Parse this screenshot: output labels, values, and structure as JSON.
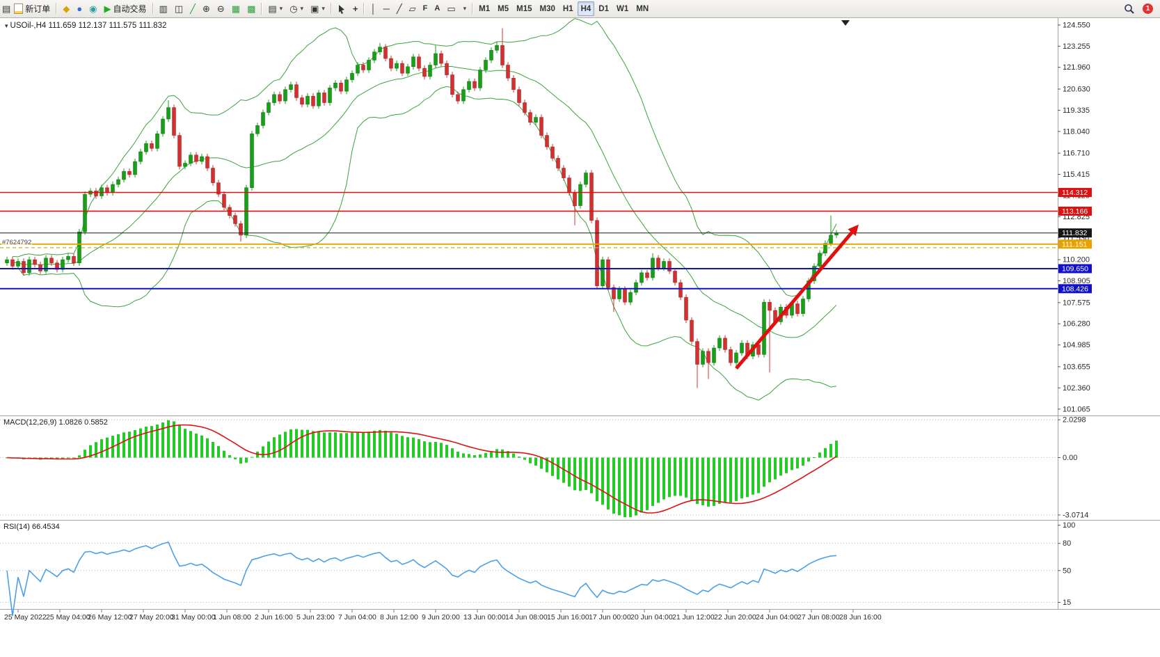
{
  "toolbar": {
    "new_order_label": "新订单",
    "auto_trading_label": "自动交易",
    "timeframes": [
      "M1",
      "M5",
      "M15",
      "M30",
      "H1",
      "H4",
      "D1",
      "W1",
      "MN"
    ],
    "active_timeframe": "H4",
    "notification_count": "1"
  },
  "icons": {
    "app": "▤",
    "doc": "▤",
    "coin": "◆",
    "user": "●",
    "speaker": "◉",
    "play": "▶",
    "bars": "▥",
    "candles": "◫",
    "line": "╱",
    "zoom_in": "⊕",
    "zoom_out": "⊖",
    "tile": "▦",
    "cascade": "▩",
    "template": "▤",
    "clock": "◷",
    "image": "▣",
    "crosshair": "+",
    "vline": "│",
    "hline": "─",
    "trend": "╱",
    "channel": "▱",
    "fibo": "F",
    "text": "A",
    "label": "▭",
    "caret": "▾"
  },
  "chart": {
    "title": "USOil-,H4 111.659 112.137 111.575 111.832",
    "order_label": "#7624792",
    "macd_label": "MACD(12,26,9) 1.0826 0.5852",
    "rsi_label": "RSI(14) 66.4534"
  },
  "chart_data": {
    "type": "candlestick",
    "symbol": "USOil-",
    "timeframe": "H4",
    "ohlc_display": {
      "open": "111.659",
      "high": "112.137",
      "low": "111.575",
      "close": "111.832"
    },
    "ylim": [
      100.8,
      124.8
    ],
    "colors": {
      "up": "#16a016",
      "up_border": "#0c6e0c",
      "down": "#d43030",
      "down_border": "#9e1f1f"
    },
    "price_ticks": [
      "124.550",
      "123.255",
      "121.960",
      "120.630",
      "119.335",
      "118.040",
      "116.710",
      "115.415",
      "114.120",
      "112.825",
      "111.530",
      "110.200",
      "108.905",
      "107.575",
      "106.280",
      "104.985",
      "103.655",
      "102.360",
      "101.065"
    ],
    "candles": {
      "first_open": 110.0,
      "closes": [
        110.2,
        109.8,
        110.1,
        109.4,
        110.2,
        109.9,
        109.5,
        110.3,
        110.0,
        109.6,
        110.2,
        110.4,
        110.0,
        111.9,
        114.2,
        114.4,
        114.1,
        114.6,
        114.3,
        114.8,
        115.1,
        115.6,
        115.4,
        116.2,
        116.8,
        117.3,
        117.0,
        117.9,
        118.8,
        119.5,
        117.8,
        115.9,
        116.1,
        116.6,
        116.2,
        116.5,
        115.8,
        114.9,
        114.2,
        113.4,
        112.9,
        112.4,
        111.7,
        114.6,
        117.9,
        118.4,
        119.2,
        119.8,
        120.3,
        119.9,
        120.6,
        120.9,
        120.1,
        119.7,
        120.2,
        119.6,
        120.4,
        119.8,
        120.7,
        121.0,
        120.5,
        121.2,
        121.6,
        122.1,
        121.8,
        122.4,
        122.9,
        123.2,
        122.5,
        121.9,
        122.2,
        121.6,
        122.0,
        122.6,
        121.9,
        121.4,
        122.1,
        122.8,
        122.2,
        121.5,
        120.3,
        119.9,
        120.6,
        121.1,
        120.7,
        121.8,
        122.4,
        123.0,
        123.3,
        122.1,
        121.3,
        120.6,
        119.8,
        119.2,
        118.6,
        118.9,
        117.8,
        117.1,
        116.4,
        115.8,
        115.2,
        114.3,
        113.5,
        114.8,
        115.5,
        112.6,
        108.6,
        110.2,
        108.5,
        107.8,
        108.4,
        107.6,
        108.2,
        108.8,
        109.4,
        109.1,
        110.3,
        109.7,
        110.1,
        109.5,
        108.8,
        107.9,
        106.5,
        105.2,
        103.8,
        104.6,
        103.9,
        104.8,
        105.4,
        104.7,
        103.9,
        104.5,
        105.1,
        104.3,
        105.0,
        104.4,
        107.6,
        107.1,
        106.4,
        107.3,
        106.8,
        107.5,
        106.9,
        107.8,
        108.9,
        109.8,
        110.6,
        111.2,
        111.7,
        111.832
      ],
      "wick_default": 0.18,
      "wick_overrides": {
        "29": {
          "h": 119.95
        },
        "42": {
          "l": 111.3
        },
        "67": {
          "h": 123.45
        },
        "77": {
          "h": 123.3
        },
        "88": {
          "h": 123.55
        },
        "89": {
          "h": 124.35
        },
        "102": {
          "l": 112.3
        },
        "109": {
          "l": 107.0
        },
        "116": {
          "h": 110.6
        },
        "124": {
          "l": 102.35
        },
        "126": {
          "l": 102.9
        },
        "137": {
          "l": 103.3
        },
        "148": {
          "h": 112.9
        }
      }
    },
    "indicators": {
      "bollinger": {
        "period": 20,
        "deviation": 2,
        "color": "#3aa33a"
      },
      "macd": {
        "fast": 12,
        "slow": 26,
        "signal": 9,
        "ticks": [
          2.0298,
          0,
          -3.0714
        ],
        "tick_labels": [
          "2.0298",
          "0.00",
          "-3.0714"
        ],
        "bar_color": "#22cc22",
        "signal_color": "#e01010"
      },
      "rsi": {
        "period": 14,
        "ticks": [
          100,
          80,
          50,
          15
        ],
        "color": "#4aa0e8"
      }
    },
    "hlines": [
      {
        "price": 114.312,
        "color": "#dd1111",
        "width": 1.6
      },
      {
        "price": 113.166,
        "color": "#dd1111",
        "width": 1.6
      },
      {
        "price": 111.832,
        "color": "#1a1a1a",
        "width": 1
      },
      {
        "price": 111.151,
        "color": "#e8a200",
        "width": 1.8
      },
      {
        "price": 110.93,
        "color": "#b9b919",
        "width": 1.2,
        "dash": "5 4"
      },
      {
        "price": 109.65,
        "color": "#1111cc",
        "width": 2
      },
      {
        "price": 108.426,
        "color": "#1111cc",
        "width": 2
      }
    ],
    "price_labels": [
      {
        "text": "114.312",
        "price": 114.312,
        "bg": "#dd1111"
      },
      {
        "text": "113.166",
        "price": 113.166,
        "bg": "#dd1111"
      },
      {
        "text": "111.832",
        "price": 111.832,
        "bg": "#161616"
      },
      {
        "text": "111.151",
        "price": 111.151,
        "bg": "#e8a200"
      },
      {
        "text": "109.650",
        "price": 109.65,
        "bg": "#1111cc"
      },
      {
        "text": "108.426",
        "price": 108.426,
        "bg": "#1111cc"
      }
    ],
    "trend_arrow": {
      "from_index": 131,
      "from_price": 103.55,
      "to_index": 153,
      "to_price": 112.35,
      "color": "#e01010"
    },
    "time_labels": [
      "25 May 2022",
      "25 May 04:00",
      "26 May 12:00",
      "27 May 20:00",
      "31 May 00:00",
      "1 Jun 08:00",
      "2 Jun 16:00",
      "5 Jun 23:00",
      "7 Jun 04:00",
      "8 Jun 12:00",
      "9 Jun 20:00",
      "13 Jun 00:00",
      "14 Jun 08:00",
      "15 Jun 16:00",
      "17 Jun 00:00",
      "20 Jun 04:00",
      "21 Jun 12:00",
      "22 Jun 20:00",
      "24 Jun 04:00",
      "27 Jun 08:00",
      "28 Jun 16:00"
    ]
  }
}
